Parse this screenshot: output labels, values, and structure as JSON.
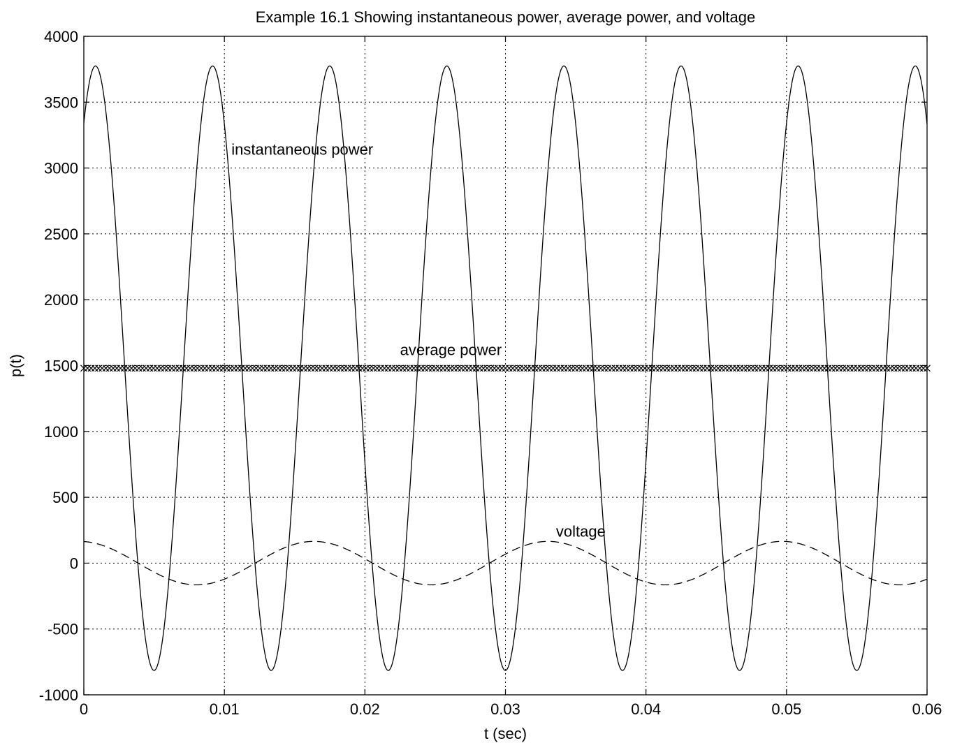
{
  "chart_data": {
    "type": "line",
    "title": "Example 16.1 Showing instantaneous power, average power, and voltage",
    "xlabel": "t (sec)",
    "ylabel": "p(t)",
    "xlim": [
      0,
      0.06
    ],
    "ylim": [
      -1000,
      4000
    ],
    "xticks": [
      0,
      0.01,
      0.02,
      0.03,
      0.04,
      0.05,
      0.06
    ],
    "xtick_labels": [
      "0",
      "0.01",
      "0.02",
      "0.03",
      "0.04",
      "0.05",
      "0.06"
    ],
    "yticks": [
      -1000,
      -500,
      0,
      500,
      1000,
      1500,
      2000,
      2500,
      3000,
      3500,
      4000
    ],
    "ytick_labels": [
      "-1000",
      "-500",
      "0",
      "500",
      "1000",
      "1500",
      "2000",
      "2500",
      "3000",
      "3500",
      "4000"
    ],
    "grid": true,
    "annotations": [
      {
        "text": "instantaneous power",
        "x": 0.0105,
        "y": 3100
      },
      {
        "text": "average power",
        "x": 0.0225,
        "y": 1580
      },
      {
        "text": "voltage",
        "x": 0.0336,
        "y": 200
      }
    ],
    "series": [
      {
        "style": "solid",
        "description_source": "curve",
        "model": {
          "form": "offset + amplitude*cos(2*pi*frequency*(t - peak_time))",
          "offset": 1480,
          "amplitude": 2295,
          "frequency": 120,
          "peak_time": 0.00083
        },
        "x": [
          0,
          0.00083,
          0.005,
          0.0092,
          0.0133,
          0.0175,
          0.0217,
          0.0258,
          0.03,
          0.0342,
          0.0383,
          0.0425,
          0.0467,
          0.0508,
          0.055,
          0.0592,
          0.06
        ],
        "values": [
          3500,
          3775,
          -815,
          3775,
          -815,
          3775,
          -815,
          3775,
          -815,
          3775,
          -815,
          3775,
          -815,
          3775,
          -815,
          3775,
          3200
        ]
      },
      {
        "style": "x-markers",
        "model": {
          "form": "constant",
          "value": 1480
        },
        "x": [
          0,
          0.06
        ],
        "values": [
          1480,
          1480
        ]
      },
      {
        "style": "dashed",
        "model": {
          "form": "amplitude*cos(2*pi*frequency*(t - peak_time))",
          "amplitude": 165,
          "frequency": 60,
          "peak_time": -0.0003
        },
        "x": [
          0,
          0.008,
          0.0163,
          0.0247,
          0.033,
          0.0413,
          0.0497,
          0.058,
          0.06
        ],
        "values": [
          160,
          -165,
          165,
          -165,
          165,
          -165,
          165,
          -165,
          -120
        ]
      }
    ]
  }
}
